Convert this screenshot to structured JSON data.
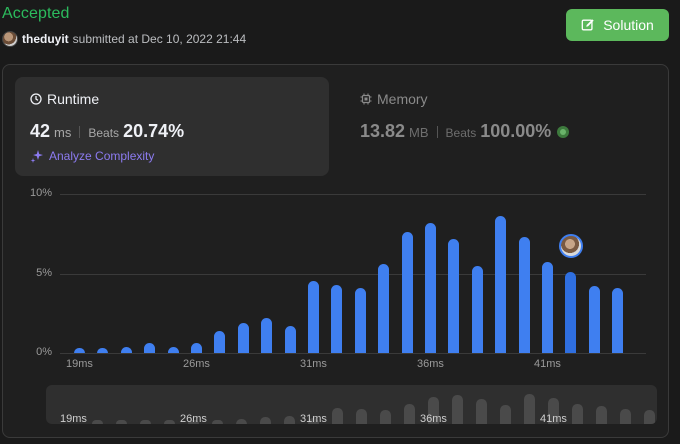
{
  "header": {
    "status": "Accepted",
    "username": "theduyit",
    "submitted_text": "submitted at Dec 10, 2022 21:44",
    "solution_label": "Solution"
  },
  "runtime": {
    "title": "Runtime",
    "value": "42",
    "unit": "ms",
    "beats_label": "Beats",
    "beats_value": "20.74%",
    "analyze_label": "Analyze Complexity"
  },
  "memory": {
    "title": "Memory",
    "value": "13.82",
    "unit": "MB",
    "beats_label": "Beats",
    "beats_value": "100.00%"
  },
  "colors": {
    "accepted": "#2cbb5d",
    "solution_button": "#5cb85c",
    "bar": "#3f7ff0",
    "analyze": "#8c7bf0"
  },
  "chart_data": {
    "type": "bar",
    "ylim": [
      0,
      10
    ],
    "y_ticks": [
      "10%",
      "5%",
      "0%"
    ],
    "x_tick_labels": [
      "19ms",
      "26ms",
      "31ms",
      "36ms",
      "41ms"
    ],
    "values": [
      0.3,
      0.3,
      0.4,
      0.6,
      0.4,
      0.6,
      1.4,
      1.9,
      2.2,
      1.7,
      4.5,
      4.3,
      4.1,
      5.6,
      7.6,
      8.2,
      7.2,
      5.5,
      8.6,
      7.3,
      5.7,
      5.1,
      4.2,
      4.1
    ],
    "highlight_index": 21,
    "grid": true
  }
}
